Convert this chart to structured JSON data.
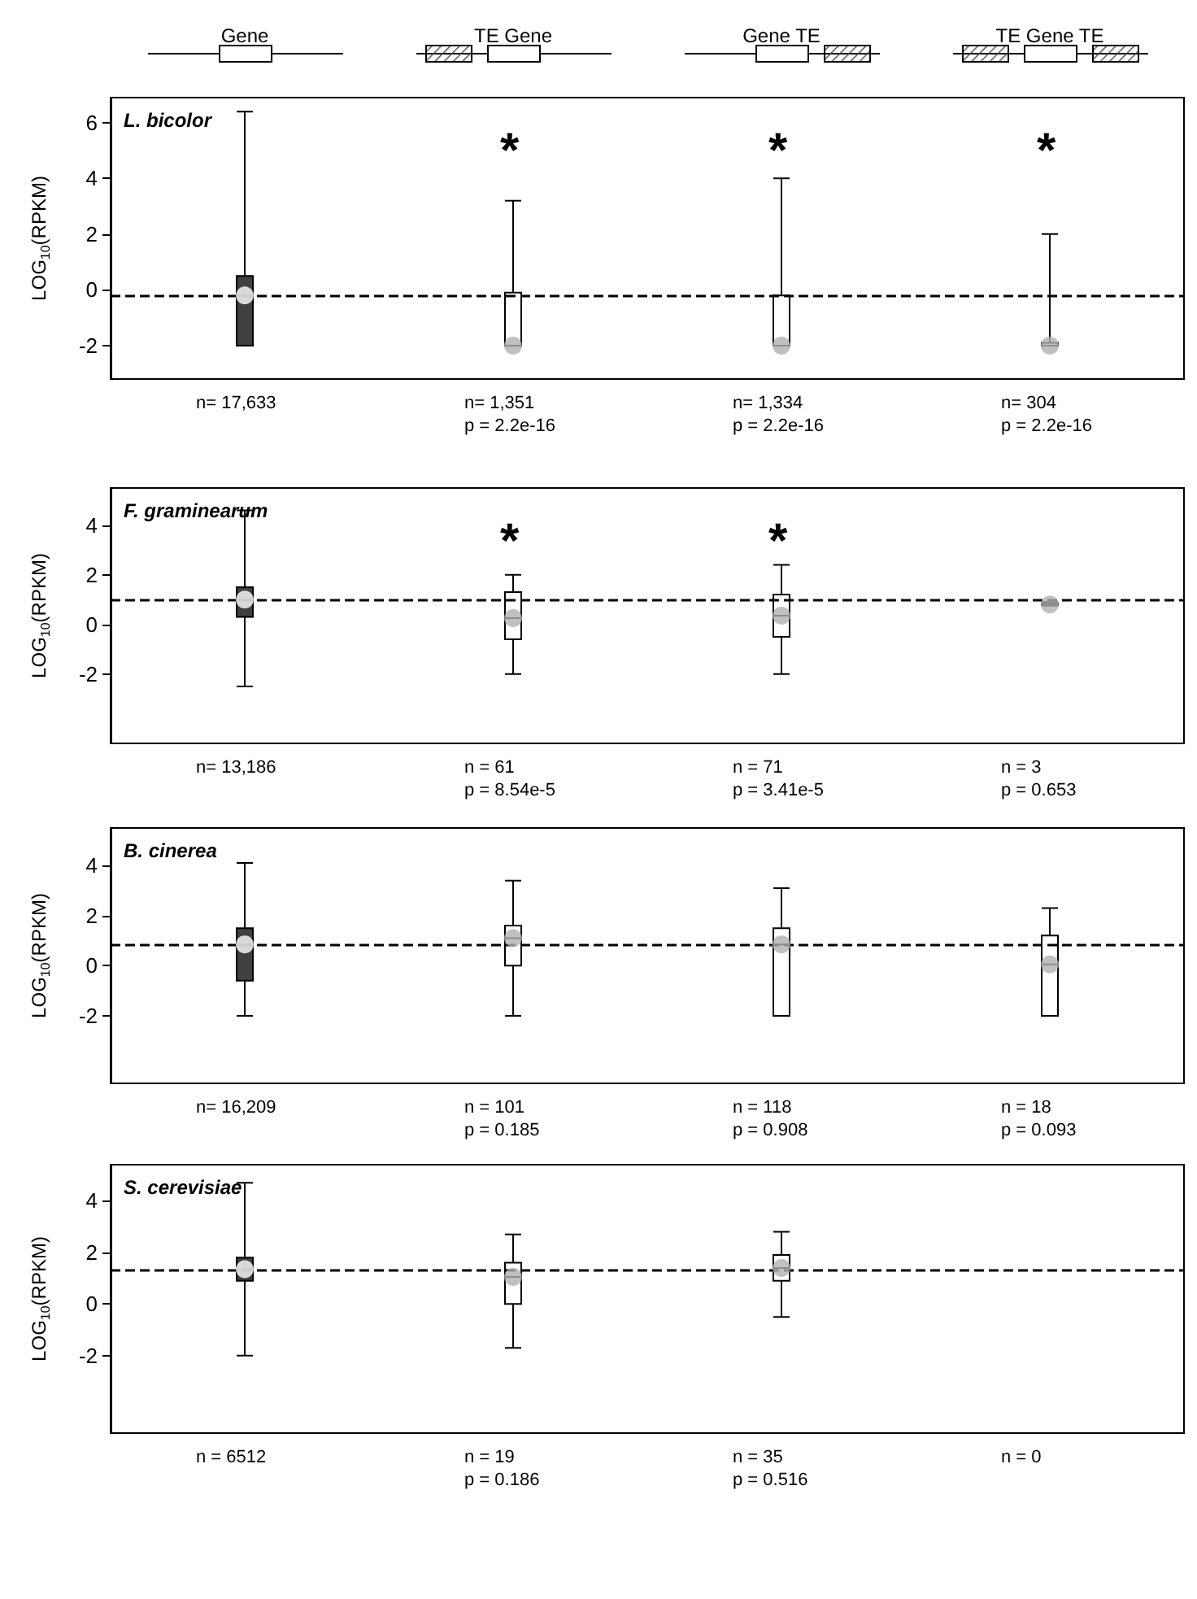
{
  "chart_data": [
    {
      "type": "box",
      "title": "L. bicolor",
      "ylabel": "LOG$_{10}$(RPKM)",
      "categories": [
        "Gene",
        "TE Gene",
        "Gene TE",
        "TE Gene TE"
      ],
      "boxes": [
        {
          "low": -2,
          "q1": -2,
          "median": -0.2,
          "q3": 0.5,
          "high": 6.4
        },
        {
          "low": -2,
          "q1": -2,
          "median": -2,
          "q3": -0.1,
          "high": 3.2
        },
        {
          "low": -2,
          "q1": -2,
          "median": -2,
          "q3": -0.2,
          "high": 4.0
        },
        {
          "low": -2,
          "q1": -2,
          "median": -2,
          "q3": -1.9,
          "high": 2.0
        }
      ],
      "colors": [
        "#404040",
        "#ffffff",
        "#ffffff",
        "#ffffff"
      ],
      "series": [
        {
          "type": "scatter",
          "color": "#b0b0b0",
          "values": [
            null,
            -2,
            -2,
            -2
          ]
        }
      ],
      "ylim": [
        -3.2,
        6.9
      ],
      "yticks": [
        -2,
        0,
        2,
        4,
        6
      ],
      "ref_lines": [
        {
          "axis": "y",
          "value": -0.2,
          "color": "#000000",
          "line_style": "dashed"
        }
      ],
      "annotations": [
        "n= 17,633",
        "n= 1,351\np = 2.2e-16",
        "n= 1,334\np = 2.2e-16",
        "n= 304\np = 2.2e-16",
        "*",
        "*",
        "*"
      ]
    },
    {
      "type": "box",
      "title": "F. graminearum",
      "ylabel": "LOG$_{10}$(RPKM)",
      "categories": [
        null,
        null,
        null,
        null
      ],
      "tick_labels": "y",
      "boxes": [
        {
          "low": -2.5,
          "q1": 0.3,
          "median": 1.0,
          "q3": 1.5,
          "high": 4.6
        },
        {
          "low": -2,
          "q1": -0.6,
          "median": 0.25,
          "q3": 1.3,
          "high": 2.0
        },
        {
          "low": -2,
          "q1": -0.5,
          "median": 0.35,
          "q3": 1.2,
          "high": 2.4
        },
        {
          "low": 0.75,
          "q1": 0.78,
          "median": 0.8,
          "q3": 0.85,
          "high": 0.9
        }
      ],
      "colors": [
        "#404040",
        "#ffffff",
        "#ffffff",
        "#ffffff"
      ],
      "series": [
        {
          "type": "scatter",
          "color": "#b0b0b0",
          "values": [
            null,
            null,
            null,
            0.8
          ]
        }
      ],
      "ylim": [
        -4.8,
        5.5
      ],
      "yticks": [
        -2,
        0,
        2,
        4
      ],
      "ref_lines": [
        {
          "axis": "y",
          "value": 1.0,
          "color": "#000000",
          "line_style": "dashed"
        }
      ],
      "annotations": [
        "n= 13,186",
        "n = 61\np = 8.54e-5",
        "n = 71\np = 3.41e-5",
        "n = 3\np = 0.653",
        "*",
        "*"
      ]
    },
    {
      "type": "box",
      "title": "B. cinerea",
      "ylabel": "LOG$_{10}$(RPKM)",
      "categories": [
        null,
        null,
        null,
        null
      ],
      "tick_labels": "y",
      "boxes": [
        {
          "low": -2,
          "q1": -0.6,
          "median": 0.85,
          "q3": 1.5,
          "high": 4.1
        },
        {
          "low": -2,
          "q1": 0,
          "median": 1.1,
          "q3": 1.6,
          "high": 3.4
        },
        {
          "low": -2,
          "q1": -2,
          "median": 0.85,
          "q3": 1.5,
          "high": 3.1
        },
        {
          "low": -2,
          "q1": -2,
          "median": 0.05,
          "q3": 1.2,
          "high": 2.3
        }
      ],
      "colors": [
        "#404040",
        "#ffffff",
        "#ffffff",
        "#ffffff"
      ],
      "ylim": [
        -4.7,
        5.5
      ],
      "yticks": [
        -2,
        0,
        2,
        4
      ],
      "ref_lines": [
        {
          "axis": "y",
          "value": 0.85,
          "color": "#000000",
          "line_style": "dashed"
        }
      ],
      "annotations": [
        "n= 16,209",
        "n = 101\np = 0.185",
        "n = 118\np = 0.908",
        "n = 18\np = 0.093"
      ]
    },
    {
      "type": "box",
      "title": "S. cerevisiae",
      "ylabel": "LOG$_{10}$(RPKM)",
      "categories": [
        null,
        null,
        null,
        null
      ],
      "tick_labels": "y",
      "boxes": [
        {
          "low": -2,
          "q1": 0.9,
          "median": 1.35,
          "q3": 1.8,
          "high": 4.7
        },
        {
          "low": -1.7,
          "q1": 0,
          "median": 1.05,
          "q3": 1.6,
          "high": 2.7
        },
        {
          "low": -0.5,
          "q1": 0.9,
          "median": 1.4,
          "q3": 1.9,
          "high": 2.8
        },
        null
      ],
      "colors": [
        "#404040",
        "#ffffff",
        "#ffffff",
        null
      ],
      "ylim": [
        -5,
        5.4
      ],
      "yticks": [
        -2,
        0,
        2,
        4
      ],
      "ref_lines": [
        {
          "axis": "y",
          "value": 1.35,
          "color": "#000000",
          "line_style": "dashed"
        }
      ],
      "annotations": [
        "n = 6512",
        "n = 19\np = 0.186",
        "n = 35\np = 0.516",
        "n = 0"
      ]
    }
  ]
}
